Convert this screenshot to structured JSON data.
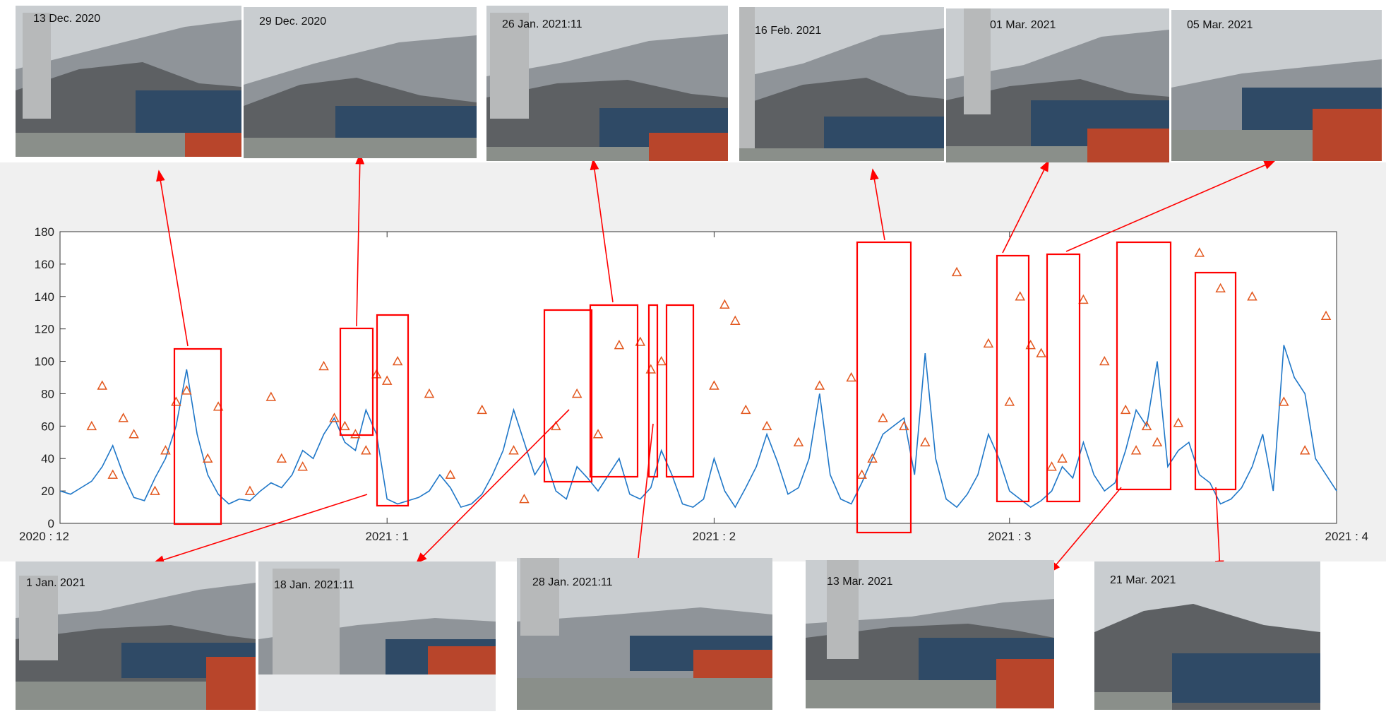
{
  "photos_top": [
    {
      "caption": "13 Dec. 2020"
    },
    {
      "caption": "29 Dec. 2020"
    },
    {
      "caption": "26 Jan. 2021:11"
    },
    {
      "caption": "16  Feb. 2021"
    },
    {
      "caption": "01 Mar. 2021"
    },
    {
      "caption": "05 Mar. 2021"
    }
  ],
  "photos_bottom": [
    {
      "caption": "1 Jan. 2021"
    },
    {
      "caption": "18 Jan. 2021:11"
    },
    {
      "caption": "28 Jan. 2021:11"
    },
    {
      "caption": "13 Mar. 2021"
    },
    {
      "caption": "21 Mar. 2021"
    }
  ],
  "colors": {
    "line": "#1f77c8",
    "markers": "#e2571e",
    "highlight": "#ff0000",
    "sky": "#c9cdd0",
    "mountain": "#6f7276",
    "building": "#2f4a66",
    "brick": "#b8452b"
  },
  "chart_data": {
    "type": "line",
    "title": "",
    "xlabel": "",
    "ylabel": "",
    "ylim": [
      0,
      180
    ],
    "yticks": [
      0,
      20,
      40,
      60,
      80,
      100,
      120,
      140,
      160,
      180
    ],
    "xlim": [
      "2020-12-01",
      "2021-04-01"
    ],
    "xticks": [
      {
        "date": "2020-12-01",
        "label": "2020 : 12"
      },
      {
        "date": "2021-01-01",
        "label": "2021 : 1"
      },
      {
        "date": "2021-02-01",
        "label": "2021 : 2"
      },
      {
        "date": "2021-03-01",
        "label": "2021 : 3"
      },
      {
        "date": "2021-04-01",
        "label": "2021 : 4"
      }
    ],
    "grid": false,
    "series": [
      {
        "style": "line",
        "x": [
          "2020-12-01",
          "2020-12-02",
          "2020-12-03",
          "2020-12-04",
          "2020-12-05",
          "2020-12-06",
          "2020-12-07",
          "2020-12-08",
          "2020-12-09",
          "2020-12-10",
          "2020-12-11",
          "2020-12-12",
          "2020-12-13",
          "2020-12-14",
          "2020-12-15",
          "2020-12-16",
          "2020-12-17",
          "2020-12-18",
          "2020-12-19",
          "2020-12-20",
          "2020-12-21",
          "2020-12-22",
          "2020-12-23",
          "2020-12-24",
          "2020-12-25",
          "2020-12-26",
          "2020-12-27",
          "2020-12-28",
          "2020-12-29",
          "2020-12-30",
          "2020-12-31",
          "2021-01-01",
          "2021-01-02",
          "2021-01-03",
          "2021-01-04",
          "2021-01-05",
          "2021-01-06",
          "2021-01-07",
          "2021-01-08",
          "2021-01-09",
          "2021-01-10",
          "2021-01-11",
          "2021-01-12",
          "2021-01-13",
          "2021-01-14",
          "2021-01-15",
          "2021-01-16",
          "2021-01-17",
          "2021-01-18",
          "2021-01-19",
          "2021-01-20",
          "2021-01-21",
          "2021-01-22",
          "2021-01-23",
          "2021-01-24",
          "2021-01-25",
          "2021-01-26",
          "2021-01-27",
          "2021-01-28",
          "2021-01-29",
          "2021-01-30",
          "2021-01-31",
          "2021-02-01",
          "2021-02-02",
          "2021-02-03",
          "2021-02-04",
          "2021-02-05",
          "2021-02-06",
          "2021-02-07",
          "2021-02-08",
          "2021-02-09",
          "2021-02-10",
          "2021-02-11",
          "2021-02-12",
          "2021-02-13",
          "2021-02-14",
          "2021-02-15",
          "2021-02-16",
          "2021-02-17",
          "2021-02-18",
          "2021-02-19",
          "2021-02-20",
          "2021-02-21",
          "2021-02-22",
          "2021-02-23",
          "2021-02-24",
          "2021-02-25",
          "2021-02-26",
          "2021-02-27",
          "2021-02-28",
          "2021-03-01",
          "2021-03-02",
          "2021-03-03",
          "2021-03-04",
          "2021-03-05",
          "2021-03-06",
          "2021-03-07",
          "2021-03-08",
          "2021-03-09",
          "2021-03-10",
          "2021-03-11",
          "2021-03-12",
          "2021-03-13",
          "2021-03-14",
          "2021-03-15",
          "2021-03-16",
          "2021-03-17",
          "2021-03-18",
          "2021-03-19",
          "2021-03-20",
          "2021-03-21",
          "2021-03-22",
          "2021-03-23",
          "2021-03-24",
          "2021-03-25",
          "2021-03-26",
          "2021-03-27",
          "2021-03-28",
          "2021-03-29",
          "2021-03-30",
          "2021-03-31",
          "2021-04-01"
        ],
        "y": [
          20,
          18,
          22,
          26,
          35,
          48,
          30,
          16,
          14,
          28,
          40,
          60,
          95,
          55,
          30,
          18,
          12,
          15,
          14,
          20,
          25,
          22,
          30,
          45,
          40,
          55,
          65,
          50,
          45,
          70,
          55,
          15,
          12,
          14,
          16,
          20,
          30,
          22,
          10,
          12,
          18,
          30,
          45,
          70,
          50,
          30,
          40,
          20,
          15,
          35,
          28,
          20,
          30,
          40,
          18,
          15,
          22,
          45,
          30,
          12,
          10,
          15,
          40,
          20,
          10,
          22,
          35,
          55,
          38,
          18,
          22,
          40,
          80,
          30,
          15,
          12,
          25,
          40,
          55,
          60,
          65,
          30,
          105,
          40,
          15,
          10,
          18,
          30,
          55,
          40,
          20,
          15,
          10,
          14,
          20,
          35,
          28,
          50,
          30,
          20,
          25,
          45,
          70,
          60,
          100,
          35,
          45,
          50,
          30,
          25,
          12,
          15,
          22,
          35,
          55,
          20,
          110,
          90,
          80,
          40,
          30,
          20
        ]
      },
      {
        "style": "markers",
        "x": [
          "2020-12-04",
          "2020-12-05",
          "2020-12-06",
          "2020-12-07",
          "2020-12-08",
          "2020-12-10",
          "2020-12-11",
          "2020-12-12",
          "2020-12-13",
          "2020-12-15",
          "2020-12-16",
          "2020-12-19",
          "2020-12-21",
          "2020-12-22",
          "2020-12-24",
          "2020-12-26",
          "2020-12-27",
          "2020-12-28",
          "2020-12-29",
          "2020-12-30",
          "2020-12-31",
          "2021-01-01",
          "2021-01-02",
          "2021-01-05",
          "2021-01-07",
          "2021-01-10",
          "2021-01-13",
          "2021-01-14",
          "2021-01-17",
          "2021-01-19",
          "2021-01-21",
          "2021-01-23",
          "2021-01-25",
          "2021-01-26",
          "2021-01-27",
          "2021-02-01",
          "2021-02-02",
          "2021-02-03",
          "2021-02-04",
          "2021-02-06",
          "2021-02-09",
          "2021-02-11",
          "2021-02-14",
          "2021-02-15",
          "2021-02-16",
          "2021-02-17",
          "2021-02-19",
          "2021-02-21",
          "2021-02-24",
          "2021-02-27",
          "2021-03-01",
          "2021-03-02",
          "2021-03-03",
          "2021-03-04",
          "2021-03-05",
          "2021-03-06",
          "2021-03-08",
          "2021-03-10",
          "2021-03-12",
          "2021-03-13",
          "2021-03-14",
          "2021-03-15",
          "2021-03-17",
          "2021-03-19",
          "2021-03-21",
          "2021-03-24",
          "2021-03-27",
          "2021-03-29",
          "2021-03-31"
        ],
        "y": [
          60,
          85,
          30,
          65,
          55,
          20,
          45,
          75,
          82,
          40,
          72,
          20,
          78,
          40,
          35,
          97,
          65,
          60,
          55,
          45,
          92,
          88,
          100,
          80,
          30,
          70,
          45,
          15,
          60,
          80,
          55,
          110,
          112,
          95,
          100,
          85,
          135,
          125,
          70,
          60,
          50,
          85,
          90,
          30,
          40,
          65,
          60,
          50,
          155,
          111,
          75,
          140,
          110,
          105,
          35,
          40,
          138,
          100,
          70,
          45,
          60,
          50,
          62,
          167,
          145,
          140,
          75,
          45,
          128
        ]
      }
    ]
  }
}
